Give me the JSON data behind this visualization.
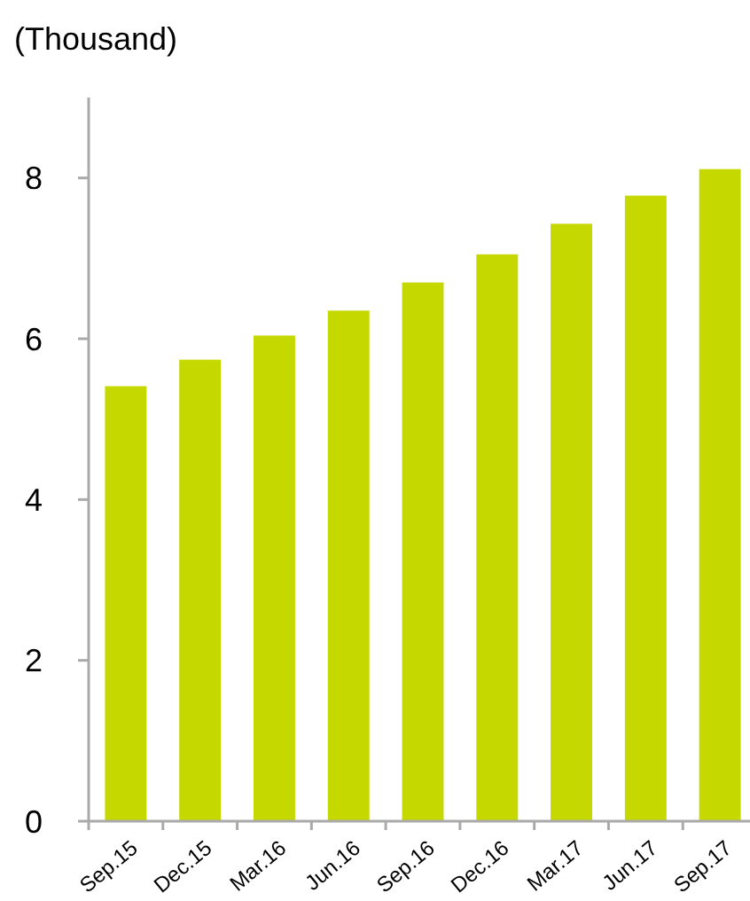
{
  "chart_data": {
    "type": "bar",
    "ylabel": "(Thousand)",
    "categories": [
      "Sep.15",
      "Dec.15",
      "Mar.16",
      "Jun.16",
      "Sep.16",
      "Dec.16",
      "Mar.17",
      "Jun.17",
      "Sep.17"
    ],
    "values": [
      5.41,
      5.74,
      6.04,
      6.35,
      6.7,
      7.05,
      7.43,
      7.78,
      8.11
    ],
    "color": "#c5d800",
    "ylim": [
      0,
      9
    ],
    "yticks": [
      0,
      2,
      4,
      6,
      8
    ],
    "grid": false
  }
}
